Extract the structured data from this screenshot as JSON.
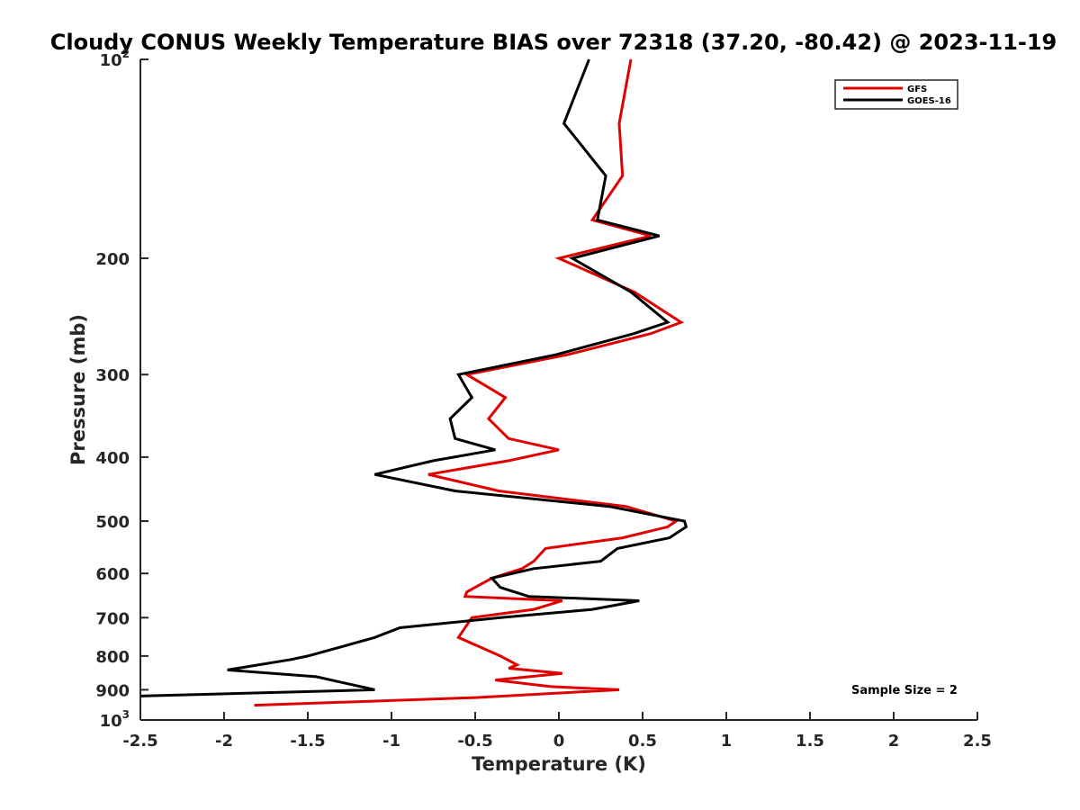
{
  "chart_data": {
    "type": "line",
    "title": "Cloudy CONUS Weekly Temperature BIAS over 72318 (37.20, -80.42) @ 2023-11-19",
    "xlabel": "Temperature (K)",
    "ylabel": "Pressure (mb)",
    "xlim": [
      -2.5,
      2.5
    ],
    "ylim": [
      100,
      1000
    ],
    "y_scale": "log",
    "y_reversed": true,
    "grid": false,
    "legend_position": "top-right",
    "annotation": "Sample Size = 2",
    "x_ticks": [
      {
        "value": -2.5,
        "label": "-2.5"
      },
      {
        "value": -2,
        "label": "-2"
      },
      {
        "value": -1.5,
        "label": "-1.5"
      },
      {
        "value": -1,
        "label": "-1"
      },
      {
        "value": -0.5,
        "label": "-0.5"
      },
      {
        "value": 0,
        "label": "0"
      },
      {
        "value": 0.5,
        "label": "0.5"
      },
      {
        "value": 1,
        "label": "1"
      },
      {
        "value": 1.5,
        "label": "1.5"
      },
      {
        "value": 2,
        "label": "2"
      },
      {
        "value": 2.5,
        "label": "2.5"
      }
    ],
    "y_ticks": [
      {
        "value": 100,
        "label": "10",
        "exp": "2"
      },
      {
        "value": 200,
        "label": "200"
      },
      {
        "value": 300,
        "label": "300"
      },
      {
        "value": 400,
        "label": "400"
      },
      {
        "value": 500,
        "label": "500"
      },
      {
        "value": 600,
        "label": "600"
      },
      {
        "value": 700,
        "label": "700"
      },
      {
        "value": 800,
        "label": "800"
      },
      {
        "value": 900,
        "label": "900"
      },
      {
        "value": 1000,
        "label": "10",
        "exp": "3"
      }
    ],
    "series": [
      {
        "name": "GFS",
        "color": "#e00000",
        "points": [
          {
            "x": 0.43,
            "p": 100
          },
          {
            "x": 0.36,
            "p": 125
          },
          {
            "x": 0.38,
            "p": 150
          },
          {
            "x": 0.2,
            "p": 175
          },
          {
            "x": 0.55,
            "p": 185
          },
          {
            "x": 0.0,
            "p": 200
          },
          {
            "x": 0.45,
            "p": 225
          },
          {
            "x": 0.73,
            "p": 250
          },
          {
            "x": 0.55,
            "p": 260
          },
          {
            "x": 0.05,
            "p": 280
          },
          {
            "x": -0.55,
            "p": 300
          },
          {
            "x": -0.32,
            "p": 325
          },
          {
            "x": -0.42,
            "p": 350
          },
          {
            "x": -0.3,
            "p": 375
          },
          {
            "x": 0.0,
            "p": 390
          },
          {
            "x": -0.3,
            "p": 405
          },
          {
            "x": -0.78,
            "p": 425
          },
          {
            "x": -0.36,
            "p": 450
          },
          {
            "x": 0.4,
            "p": 475
          },
          {
            "x": 0.7,
            "p": 500
          },
          {
            "x": 0.65,
            "p": 510
          },
          {
            "x": 0.38,
            "p": 530
          },
          {
            "x": -0.08,
            "p": 550
          },
          {
            "x": -0.15,
            "p": 575
          },
          {
            "x": -0.22,
            "p": 590
          },
          {
            "x": -0.4,
            "p": 610
          },
          {
            "x": -0.55,
            "p": 640
          },
          {
            "x": -0.56,
            "p": 650
          },
          {
            "x": 0.02,
            "p": 660
          },
          {
            "x": -0.15,
            "p": 680
          },
          {
            "x": -0.52,
            "p": 700
          },
          {
            "x": -0.6,
            "p": 750
          },
          {
            "x": -0.35,
            "p": 800
          },
          {
            "x": -0.25,
            "p": 825
          },
          {
            "x": -0.3,
            "p": 835
          },
          {
            "x": 0.02,
            "p": 850
          },
          {
            "x": -0.38,
            "p": 870
          },
          {
            "x": -0.05,
            "p": 890
          },
          {
            "x": 0.36,
            "p": 900
          },
          {
            "x": -0.5,
            "p": 925
          },
          {
            "x": -1.82,
            "p": 950
          }
        ]
      },
      {
        "name": "GOES-16",
        "color": "#000000",
        "points": [
          {
            "x": 0.18,
            "p": 100
          },
          {
            "x": 0.03,
            "p": 125
          },
          {
            "x": 0.28,
            "p": 150
          },
          {
            "x": 0.23,
            "p": 175
          },
          {
            "x": 0.6,
            "p": 185
          },
          {
            "x": 0.08,
            "p": 200
          },
          {
            "x": 0.43,
            "p": 225
          },
          {
            "x": 0.65,
            "p": 250
          },
          {
            "x": 0.45,
            "p": 260
          },
          {
            "x": -0.02,
            "p": 280
          },
          {
            "x": -0.6,
            "p": 300
          },
          {
            "x": -0.52,
            "p": 325
          },
          {
            "x": -0.65,
            "p": 350
          },
          {
            "x": -0.62,
            "p": 375
          },
          {
            "x": -0.38,
            "p": 390
          },
          {
            "x": -0.75,
            "p": 405
          },
          {
            "x": -1.1,
            "p": 425
          },
          {
            "x": -0.62,
            "p": 450
          },
          {
            "x": 0.3,
            "p": 475
          },
          {
            "x": 0.75,
            "p": 500
          },
          {
            "x": 0.76,
            "p": 510
          },
          {
            "x": 0.66,
            "p": 530
          },
          {
            "x": 0.35,
            "p": 550
          },
          {
            "x": 0.25,
            "p": 575
          },
          {
            "x": -0.15,
            "p": 590
          },
          {
            "x": -0.4,
            "p": 610
          },
          {
            "x": -0.35,
            "p": 630
          },
          {
            "x": -0.18,
            "p": 650
          },
          {
            "x": 0.48,
            "p": 660
          },
          {
            "x": 0.2,
            "p": 680
          },
          {
            "x": -0.35,
            "p": 700
          },
          {
            "x": -0.95,
            "p": 725
          },
          {
            "x": -1.1,
            "p": 750
          },
          {
            "x": -1.3,
            "p": 775
          },
          {
            "x": -1.5,
            "p": 800
          },
          {
            "x": -1.6,
            "p": 810
          },
          {
            "x": -1.98,
            "p": 840
          },
          {
            "x": -1.45,
            "p": 860
          },
          {
            "x": -1.1,
            "p": 900
          },
          {
            "x": -2.5,
            "p": 920
          }
        ]
      }
    ]
  }
}
